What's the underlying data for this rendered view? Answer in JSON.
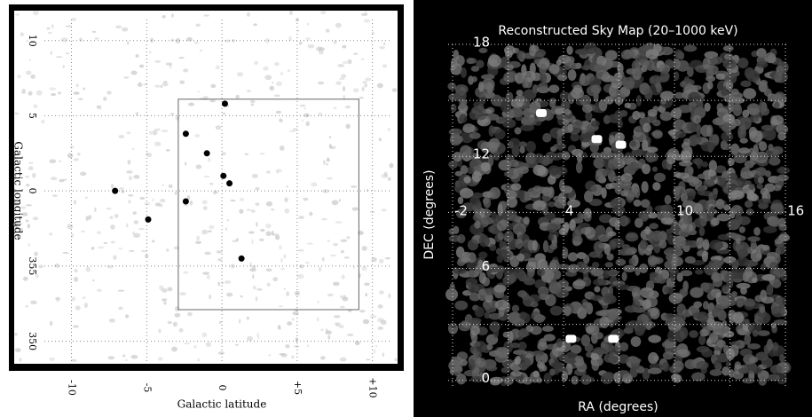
{
  "chart_data": [
    {
      "type": "image",
      "xlabel": "Galactic latitude",
      "ylabel": "Galactic longitude",
      "xlim": [
        -11.8,
        11.2
      ],
      "ylim": [
        -11.5,
        11.4
      ],
      "xticks": [
        -10,
        -5,
        0,
        {
          "value": 5,
          "label": "+5"
        },
        {
          "value": 10,
          "label": "+10"
        }
      ],
      "yticks": [
        10,
        5,
        0,
        {
          "value": -5,
          "label": "355"
        },
        {
          "value": -10,
          "label": "350"
        }
      ],
      "grid": true,
      "sources": {
        "x": [
          -7.1,
          -4.9,
          -2.4,
          0.2,
          0.1,
          -2.4,
          1.3,
          -1.0,
          0.5
        ],
        "y": [
          0.0,
          -1.9,
          3.8,
          5.8,
          1.0,
          -0.7,
          -4.5,
          2.5,
          0.5
        ],
        "color": "#000000"
      },
      "box": {
        "x": [
          -2.9,
          9.1
        ],
        "y": [
          -7.9,
          6.1
        ]
      }
    },
    {
      "type": "image",
      "title": "Reconstructed Sky Map (20–1000 keV)",
      "xlabel": "RA (degrees)",
      "ylabel": "DEC (degrees)",
      "xlim": [
        -2.24,
        16.14
      ],
      "ylim": [
        -0.3,
        18
      ],
      "xticks": [
        -2,
        4,
        10,
        16
      ],
      "minor_xticks": [
        1,
        7,
        13
      ],
      "yticks": [
        0,
        6,
        12,
        18
      ],
      "minor_yticks": [
        3,
        9,
        15
      ],
      "grid": true,
      "sources": {
        "x": [
          2.8,
          5.8,
          7.1,
          4.4,
          6.7
        ],
        "y": [
          14.3,
          12.9,
          12.6,
          2.2,
          2.2
        ],
        "color": "#ffffff"
      }
    }
  ]
}
